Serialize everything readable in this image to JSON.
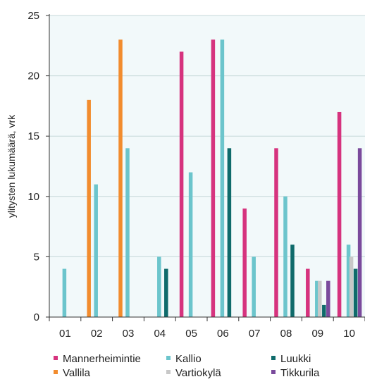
{
  "chart_data": {
    "type": "bar",
    "title": "",
    "xlabel": "",
    "ylabel": "ylitysten lukumäärä, vrk",
    "ylim": [
      0,
      25
    ],
    "yticks": [
      0,
      5,
      10,
      15,
      20,
      25
    ],
    "grid": "horizontal",
    "background": "#f2f9fa",
    "legend_position": "bottom",
    "categories": [
      "01",
      "02",
      "03",
      "04",
      "05",
      "06",
      "07",
      "08",
      "09",
      "10"
    ],
    "series": [
      {
        "name": "Mannerheimintie",
        "color": "#d6337e",
        "values": [
          0,
          0,
          0,
          0,
          22,
          23,
          9,
          14,
          4,
          17
        ]
      },
      {
        "name": "Vallila",
        "color": "#f28c2e",
        "values": [
          0,
          18,
          23,
          0,
          0,
          0,
          0,
          0,
          0,
          0
        ]
      },
      {
        "name": "Kallio",
        "color": "#6cc5cc",
        "values": [
          4,
          11,
          14,
          5,
          12,
          23,
          5,
          10,
          3,
          6
        ]
      },
      {
        "name": "Vartiokylä",
        "color": "#c8c8c8",
        "values": [
          0,
          0,
          0,
          0,
          0,
          0,
          0,
          0,
          3,
          5
        ]
      },
      {
        "name": "Luukki",
        "color": "#0f6b6b",
        "values": [
          0,
          0,
          0,
          4,
          0,
          14,
          0,
          6,
          1,
          4
        ]
      },
      {
        "name": "Tikkurila",
        "color": "#7a4a9c",
        "values": [
          0,
          0,
          0,
          0,
          0,
          0,
          0,
          0,
          3,
          14
        ]
      }
    ]
  }
}
